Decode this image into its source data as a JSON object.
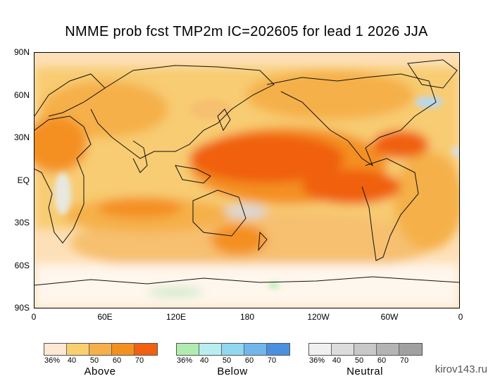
{
  "title": "NMME prob fcst TMP2m IC=202605 for lead 1 2026 JJA",
  "lat_labels": [
    "90N",
    "60N",
    "30N",
    "EQ",
    "30S",
    "60S",
    "90S"
  ],
  "lon_labels": [
    "0",
    "60E",
    "120E",
    "180",
    "120W",
    "60W",
    "0"
  ],
  "legends": [
    {
      "name": "Above",
      "ticks": [
        "36%",
        "40",
        "50",
        "60",
        "70"
      ],
      "colors": [
        "#fde8d4",
        "#f8d070",
        "#f5b04a",
        "#f49020",
        "#f06010"
      ]
    },
    {
      "name": "Below",
      "ticks": [
        "36%",
        "40",
        "50",
        "60",
        "70"
      ],
      "colors": [
        "#b0ecb0",
        "#b8eef0",
        "#90d8f0",
        "#70b8ec",
        "#4a90e0"
      ]
    },
    {
      "name": "Neutral",
      "ticks": [
        "36%",
        "40",
        "50",
        "60",
        "70"
      ],
      "colors": [
        "#f0f0f0",
        "#dcdcdc",
        "#c8c8c8",
        "#b4b4b4",
        "#a0a0a0"
      ]
    }
  ],
  "watermark": "kirov143.ru"
}
